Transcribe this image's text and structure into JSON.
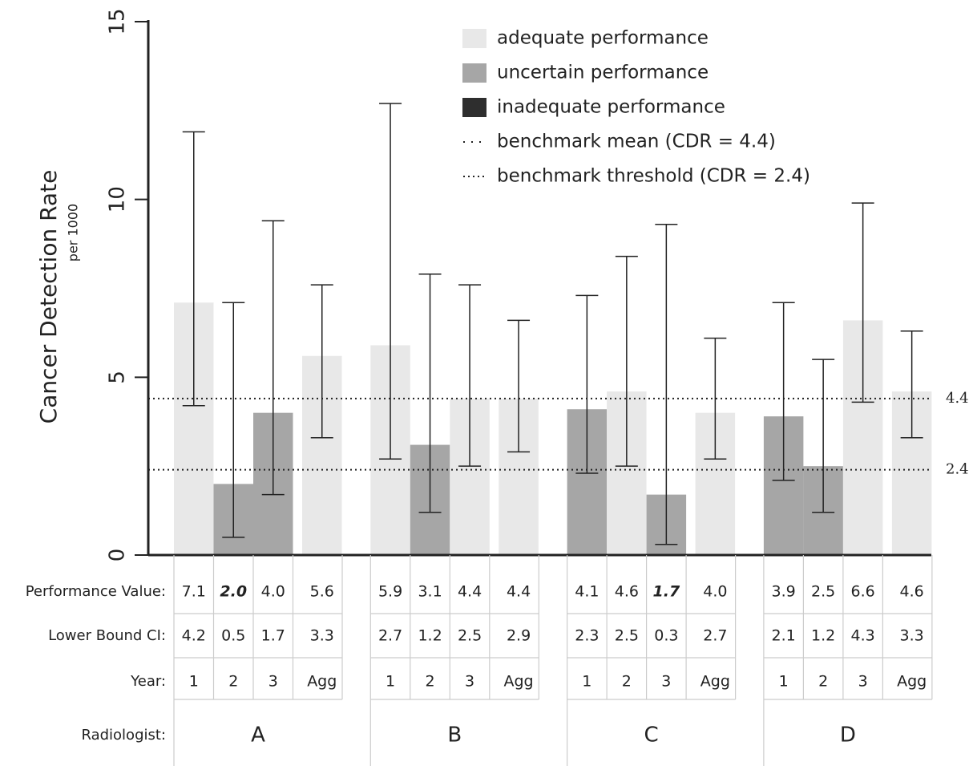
{
  "chart_data": {
    "type": "bar",
    "y_label": "Cancer Detection Rate",
    "y_sublabel": "per 1000",
    "ylim": [
      0,
      15
    ],
    "yticks": [
      0,
      5,
      10,
      15
    ],
    "groups": [
      "A",
      "B",
      "C",
      "D"
    ],
    "categories": [
      "1",
      "2",
      "3",
      "Agg",
      "1",
      "2",
      "3",
      "Agg",
      "1",
      "2",
      "3",
      "Agg",
      "1",
      "2",
      "3",
      "Agg"
    ],
    "values": [
      7.1,
      2.0,
      4.0,
      5.6,
      5.9,
      3.1,
      4.4,
      4.4,
      4.1,
      4.6,
      1.7,
      4.0,
      3.9,
      2.5,
      6.6,
      4.6
    ],
    "value_labels": [
      "7.1",
      "2.0",
      "4.0",
      "5.6",
      "5.9",
      "3.1",
      "4.4",
      "4.4",
      "4.1",
      "4.6",
      "1.7",
      "4.0",
      "3.9",
      "2.5",
      "6.6",
      "4.6"
    ],
    "emphasized": [
      false,
      true,
      false,
      false,
      false,
      false,
      false,
      false,
      false,
      false,
      true,
      false,
      false,
      false,
      false,
      false
    ],
    "lower": [
      4.2,
      0.5,
      1.7,
      3.3,
      2.7,
      1.2,
      2.5,
      2.9,
      2.3,
      2.5,
      0.3,
      2.7,
      2.1,
      1.2,
      4.3,
      3.3
    ],
    "lower_labels": [
      "4.2",
      "0.5",
      "1.7",
      "3.3",
      "2.7",
      "1.2",
      "2.5",
      "2.9",
      "2.3",
      "2.5",
      "0.3",
      "2.7",
      "2.1",
      "1.2",
      "4.3",
      "3.3"
    ],
    "upper": [
      11.9,
      7.1,
      9.4,
      7.6,
      12.7,
      7.9,
      7.6,
      6.6,
      7.3,
      8.4,
      9.3,
      6.1,
      7.1,
      5.5,
      9.9,
      6.3
    ],
    "colors": [
      "#e8e8e8",
      "#a6a6a6",
      "#a6a6a6",
      "#e8e8e8",
      "#e8e8e8",
      "#a6a6a6",
      "#e8e8e8",
      "#e8e8e8",
      "#a6a6a6",
      "#e8e8e8",
      "#a6a6a6",
      "#e8e8e8",
      "#a6a6a6",
      "#a6a6a6",
      "#e8e8e8",
      "#e8e8e8"
    ],
    "legend": [
      {
        "name": "adequate performance",
        "color": "#e8e8e8"
      },
      {
        "name": "uncertain performance",
        "color": "#a6a6a6"
      },
      {
        "name": "inadequate performance",
        "color": "#2e2e2e"
      }
    ],
    "benchmarks": [
      {
        "name": "benchmark mean (CDR = 4.4)",
        "value": 4.4,
        "dash": "2 8"
      },
      {
        "name": "benchmark threshold (CDR = 2.4)",
        "value": 2.4,
        "dash": "2 4"
      }
    ],
    "row_labels": [
      "Performance Value:",
      "Lower Bound CI:",
      "Year:",
      "Radiologist:"
    ]
  }
}
